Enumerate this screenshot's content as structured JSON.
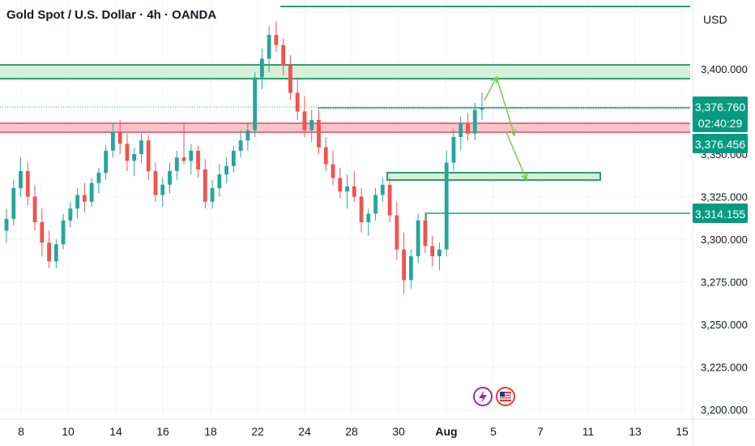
{
  "header": {
    "title": "Gold Spot / U.S. Dollar · 4h · OANDA",
    "currency": "USD"
  },
  "chart_data": {
    "type": "candlestick",
    "symbol": "Gold Spot / U.S. Dollar",
    "interval": "4h",
    "source": "OANDA",
    "y_ticks": [
      "3,400.000",
      "3,325.000",
      "3,300.000",
      "3,275.000",
      "3,250.000",
      "3,225.000",
      "3,200.000"
    ],
    "y_tick_values": [
      3400,
      3325,
      3300,
      3275,
      3250,
      3225,
      3200
    ],
    "ylim": [
      3195,
      3430
    ],
    "x_ticks": [
      "8",
      "10",
      "14",
      "16",
      "18",
      "22",
      "24",
      "28",
      "30",
      "Aug",
      "5",
      "7",
      "11",
      "13",
      "15"
    ],
    "price_labels": {
      "current_price": "3,376.760",
      "countdown": "02:40:29",
      "second_price": "3,376.456",
      "level_price": "3,314.155"
    },
    "candles": [
      [
        3305,
        3318,
        3298,
        3312
      ],
      [
        3312,
        3335,
        3308,
        3330
      ],
      [
        3330,
        3348,
        3325,
        3340
      ],
      [
        3340,
        3345,
        3320,
        3325
      ],
      [
        3325,
        3332,
        3305,
        3310
      ],
      [
        3310,
        3318,
        3290,
        3298
      ],
      [
        3298,
        3305,
        3283,
        3287
      ],
      [
        3287,
        3300,
        3283,
        3297
      ],
      [
        3297,
        3315,
        3294,
        3311
      ],
      [
        3311,
        3322,
        3307,
        3318
      ],
      [
        3318,
        3330,
        3312,
        3326
      ],
      [
        3326,
        3333,
        3316,
        3322
      ],
      [
        3322,
        3336,
        3319,
        3333
      ],
      [
        3333,
        3342,
        3327,
        3339
      ],
      [
        3339,
        3355,
        3335,
        3352
      ],
      [
        3352,
        3368,
        3348,
        3363
      ],
      [
        3363,
        3370,
        3350,
        3356
      ],
      [
        3356,
        3362,
        3340,
        3346
      ],
      [
        3346,
        3354,
        3337,
        3350
      ],
      [
        3350,
        3362,
        3345,
        3358
      ],
      [
        3358,
        3361,
        3335,
        3340
      ],
      [
        3340,
        3345,
        3322,
        3326
      ],
      [
        3326,
        3336,
        3319,
        3332
      ],
      [
        3332,
        3345,
        3327,
        3340
      ],
      [
        3340,
        3352,
        3335,
        3348
      ],
      [
        3348,
        3368,
        3344,
        3346
      ],
      [
        3346,
        3356,
        3338,
        3352
      ],
      [
        3352,
        3355,
        3336,
        3341
      ],
      [
        3341,
        3347,
        3318,
        3322
      ],
      [
        3322,
        3335,
        3318,
        3330
      ],
      [
        3330,
        3344,
        3325,
        3338
      ],
      [
        3338,
        3348,
        3333,
        3343
      ],
      [
        3343,
        3355,
        3339,
        3352
      ],
      [
        3352,
        3364,
        3348,
        3358
      ],
      [
        3358,
        3368,
        3352,
        3364
      ],
      [
        3364,
        3398,
        3360,
        3395
      ],
      [
        3395,
        3412,
        3388,
        3406
      ],
      [
        3406,
        3425,
        3398,
        3420
      ],
      [
        3420,
        3428,
        3410,
        3414
      ],
      [
        3414,
        3418,
        3396,
        3402
      ],
      [
        3402,
        3408,
        3382,
        3386
      ],
      [
        3386,
        3395,
        3370,
        3375
      ],
      [
        3375,
        3384,
        3360,
        3364
      ],
      [
        3364,
        3376,
        3357,
        3370
      ],
      [
        3370,
        3376,
        3350,
        3354
      ],
      [
        3354,
        3360,
        3340,
        3344
      ],
      [
        3344,
        3352,
        3332,
        3336
      ],
      [
        3336,
        3342,
        3324,
        3328
      ],
      [
        3328,
        3338,
        3318,
        3331
      ],
      [
        3331,
        3340,
        3322,
        3325
      ],
      [
        3325,
        3330,
        3304,
        3310
      ],
      [
        3310,
        3318,
        3302,
        3315
      ],
      [
        3315,
        3330,
        3311,
        3326
      ],
      [
        3326,
        3336,
        3322,
        3332
      ],
      [
        3332,
        3336,
        3310,
        3314
      ],
      [
        3314,
        3322,
        3288,
        3294
      ],
      [
        3294,
        3304,
        3268,
        3276
      ],
      [
        3276,
        3294,
        3271,
        3290
      ],
      [
        3290,
        3315,
        3286,
        3311
      ],
      [
        3311,
        3316,
        3292,
        3296
      ],
      [
        3296,
        3302,
        3284,
        3290
      ],
      [
        3290,
        3298,
        3282,
        3294
      ],
      [
        3294,
        3352,
        3290,
        3345
      ],
      [
        3345,
        3365,
        3340,
        3360
      ],
      [
        3360,
        3372,
        3352,
        3368
      ],
      [
        3368,
        3374,
        3358,
        3362
      ],
      [
        3362,
        3380,
        3358,
        3376
      ],
      [
        3376,
        3386,
        3370,
        3377
      ]
    ],
    "zones": [
      {
        "name": "upper-resistance-zone",
        "from": 3394,
        "to": 3402,
        "color": "#a5d6a7"
      },
      {
        "name": "red-resistance-band",
        "from": 3362,
        "to": 3367,
        "color": "#f28b9a"
      },
      {
        "name": "demand-zone",
        "from": 3333,
        "to": 3337,
        "color": "#c8e6c9"
      }
    ],
    "levels": [
      {
        "name": "top-level-line",
        "value": 3428
      },
      {
        "name": "current-price-line",
        "value": 3376.76
      },
      {
        "name": "support-level-line",
        "value": 3314.155
      }
    ],
    "colors": {
      "up": "#26a69a",
      "down": "#ef5350",
      "tag_green": "#089981",
      "line_green": "#2e9e6e",
      "arrow_green": "#7ac74f"
    }
  },
  "footer_icons": {
    "lightning": "lightning-icon",
    "flag": "us-flag-icon"
  }
}
